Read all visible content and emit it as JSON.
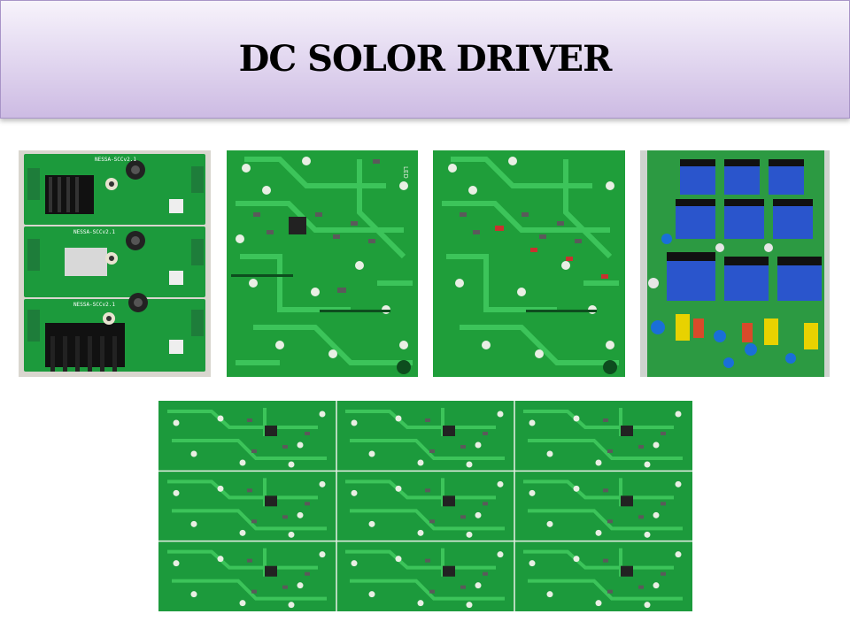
{
  "slide": {
    "title": "DC SOLOR DRIVER"
  },
  "colors": {
    "title_band_top": "#f7f3fb",
    "title_band_bottom": "#cdbbe3",
    "pcb_green": "#1f9e3a",
    "pcb_trace": "#38c257",
    "pcb_dark": "#0f6e2a",
    "capacitor_blue": "#1f4fc4"
  },
  "board_labels": {
    "assembled_1": "NESSA-SCCv2.1",
    "assembled_2": "NESSA-SCCv2.1",
    "assembled_3": "NESSA-SCCv2.1",
    "led_marking": "LED"
  }
}
